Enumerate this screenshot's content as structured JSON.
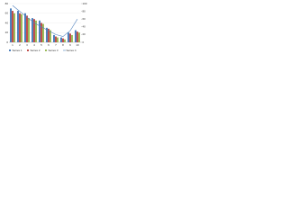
{
  "chart_data": {
    "type": "bar",
    "categories": [
      "1",
      "2",
      "3",
      "4",
      "5",
      "6",
      "7",
      "8",
      "9",
      "10"
    ],
    "series": [
      {
        "name": "Series 1",
        "color": "#4f81bd",
        "values": [
          70,
          65,
          60,
          50,
          45,
          30,
          15,
          10,
          20,
          25
        ]
      },
      {
        "name": "Series 2",
        "color": "#c0504d",
        "values": [
          65,
          60,
          55,
          48,
          40,
          28,
          12,
          8,
          18,
          22
        ]
      },
      {
        "name": "Series 3",
        "color": "#9bbb59",
        "values": [
          60,
          58,
          50,
          45,
          38,
          25,
          10,
          6,
          15,
          20
        ]
      },
      {
        "name": "Series 4",
        "color": "#4f81bd",
        "type": "line",
        "axis": "y2",
        "values": [
          95,
          80,
          65,
          50,
          40,
          30,
          20,
          15,
          30,
          60
        ]
      }
    ],
    "ylim": [
      0,
      80
    ],
    "yticks": [
      0,
      20,
      40,
      60,
      80
    ],
    "y2lim": [
      0,
      100
    ],
    "y2ticks": [
      0,
      20,
      40,
      60,
      80,
      100
    ],
    "grid": true,
    "legend": "bottom"
  }
}
